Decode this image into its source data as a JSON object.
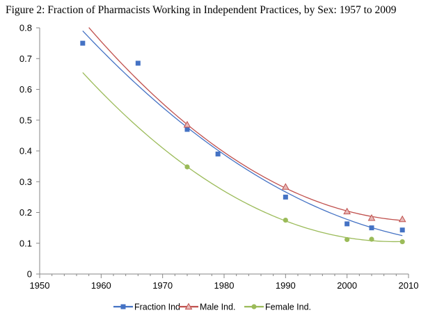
{
  "chart_data": {
    "type": "scatter",
    "title": "Figure 2: Fraction of Pharmacists Working in Independent Practices, by Sex: 1957 to 2009",
    "xlabel": "",
    "ylabel": "",
    "xlim": [
      1950,
      2010
    ],
    "ylim": [
      0,
      0.8
    ],
    "x_ticks": [
      "1950",
      "1960",
      "1970",
      "1980",
      "1990",
      "2000",
      "2010"
    ],
    "y_ticks": [
      "0",
      "0.1",
      "0.2",
      "0.3",
      "0.4",
      "0.5",
      "0.6",
      "0.7",
      "0.8"
    ],
    "grid": false,
    "legend_position": "bottom",
    "series": [
      {
        "name": "Fraction Ind",
        "color": "#4472C4",
        "marker": "square",
        "x": [
          1957,
          1966,
          1974,
          1979,
          1990,
          2000,
          2004,
          2009
        ],
        "y": [
          0.75,
          0.685,
          0.47,
          0.39,
          0.25,
          0.163,
          0.15,
          0.143
        ],
        "trendline": "polynomial"
      },
      {
        "name": "Male Ind.",
        "color": "#C0504D",
        "marker": "triangle",
        "x": [
          1974,
          1990,
          2000,
          2004,
          2009
        ],
        "y": [
          0.485,
          0.283,
          0.203,
          0.182,
          0.178
        ],
        "trendline": "polynomial"
      },
      {
        "name": "Female Ind.",
        "color": "#9BBB59",
        "marker": "circle",
        "x": [
          1974,
          1990,
          2000,
          2004,
          2009
        ],
        "y": [
          0.348,
          0.175,
          0.112,
          0.113,
          0.105
        ],
        "trendline": "polynomial"
      }
    ]
  }
}
